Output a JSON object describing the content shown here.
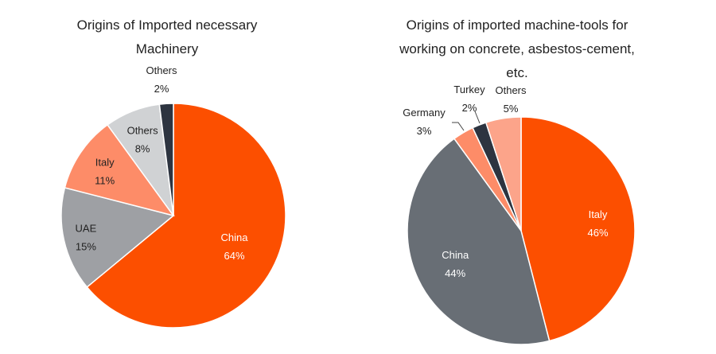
{
  "chart_data": [
    {
      "type": "pie",
      "title_lines": [
        "Origins of Imported necessary",
        "Machinery"
      ],
      "slices": [
        {
          "label": "China",
          "value": 64,
          "pct_label": "64%",
          "color": "#fc4f00",
          "text_color": "#ffffff"
        },
        {
          "label": "UAE",
          "value": 15,
          "pct_label": "15%",
          "color": "#9ea0a4",
          "text_color": "#222222"
        },
        {
          "label": "Italy",
          "value": 11,
          "pct_label": "11%",
          "color": "#fd8c68",
          "text_color": "#222222"
        },
        {
          "label": "Others",
          "value": 8,
          "pct_label": "8%",
          "color": "#d0d2d4",
          "text_color": "#222222"
        },
        {
          "label": "Others",
          "value": 2,
          "pct_label": "2%",
          "color": "#2d3440",
          "text_color": "#222222"
        }
      ]
    },
    {
      "type": "pie",
      "title_lines": [
        "Origins of imported machine-tools for",
        "working on concrete, asbestos-cement,",
        "etc."
      ],
      "slices": [
        {
          "label": "Italy",
          "value": 46,
          "pct_label": "46%",
          "color": "#fc4f00",
          "text_color": "#ffffff"
        },
        {
          "label": "China",
          "value": 44,
          "pct_label": "44%",
          "color": "#686e75",
          "text_color": "#ffffff"
        },
        {
          "label": "Germany",
          "value": 3,
          "pct_label": "3%",
          "color": "#fd8c68",
          "text_color": "#222222"
        },
        {
          "label": "Turkey",
          "value": 2,
          "pct_label": "2%",
          "color": "#2d3440",
          "text_color": "#222222"
        },
        {
          "label": "Others",
          "value": 5,
          "pct_label": "5%",
          "color": "#fca48a",
          "text_color": "#222222"
        }
      ]
    }
  ]
}
